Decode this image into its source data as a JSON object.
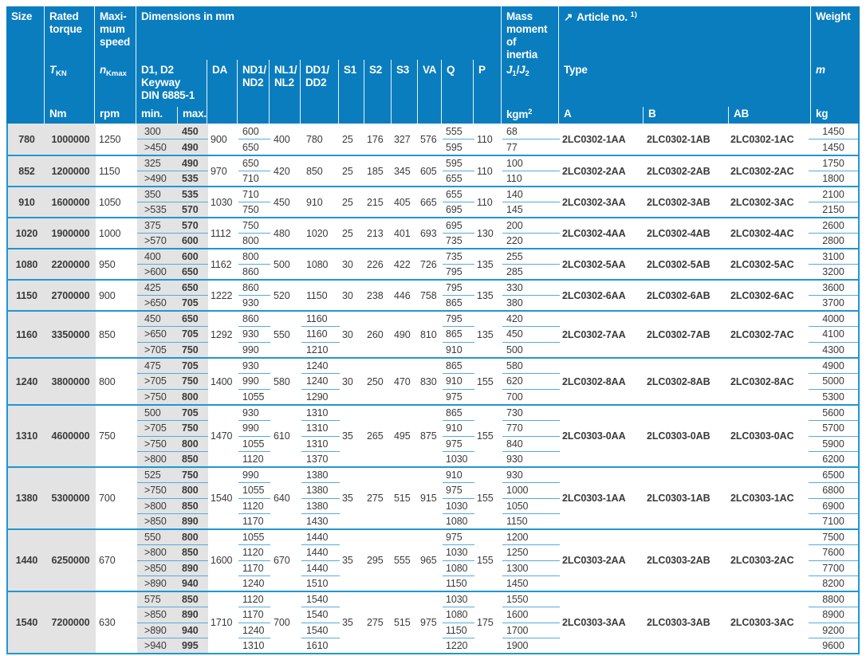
{
  "header": {
    "size": "Size",
    "rated_torque": "Rated\ntorque",
    "max_speed": "Maxi-\nmum\nspeed",
    "dimensions": "Dimensions in mm",
    "mass_moment": "Mass\nmoment\nof\ninertia",
    "article": {
      "arrow_icon": "↗",
      "label": "Article no.",
      "sup": "1)"
    },
    "weight": "Weight",
    "tkn": {
      "base": "T",
      "sub": "KN"
    },
    "nkmax": {
      "base": "n",
      "sub": "Kmax"
    },
    "d1d2": "D1, D2\nKeyway\nDIN 6885-1",
    "da": "DA",
    "nd": "ND1/\nND2",
    "nl": "NL1/\nNL2",
    "dd": "DD1/\nDD2",
    "s1": "S1",
    "s2": "S2",
    "s3": "S3",
    "va": "VA",
    "q": "Q",
    "p": "P",
    "j": {
      "b1": "J",
      "s1": "1",
      "sep": "/",
      "b2": "J",
      "s2": "2"
    },
    "type": "Type",
    "m": "m",
    "units": {
      "nm": "Nm",
      "rpm": "rpm",
      "min": "min.",
      "max": "max.",
      "kgm2_base": "kgm",
      "kgm2_sup": "2",
      "a": "A",
      "b": "B",
      "ab": "AB",
      "kg": "kg"
    }
  },
  "colors": {
    "header_bg": "#0a7dbe",
    "row_line": "#2196d3",
    "fraction_line": "#55abdd",
    "gray_bg": "#e3e3e3",
    "text": "#3a3a3a"
  },
  "rows": [
    {
      "size": "780",
      "torque": "1000000",
      "speed": "1250",
      "d_min": [
        "300",
        ">450"
      ],
      "d_max": [
        "450",
        "490"
      ],
      "da": "900",
      "nd": [
        "600",
        "650"
      ],
      "nl": "400",
      "dd": [
        "780"
      ],
      "s1": "25",
      "s2": "176",
      "s3": "327",
      "va": "576",
      "q": [
        "555",
        "595"
      ],
      "p": "110",
      "j": [
        "68",
        "77"
      ],
      "type_a": "2LC0302-1AA",
      "type_b": "2LC0302-1AB",
      "type_ab": "2LC0302-1AC",
      "weight": [
        "1450",
        "1450"
      ]
    },
    {
      "size": "852",
      "torque": "1200000",
      "speed": "1150",
      "d_min": [
        "325",
        ">490"
      ],
      "d_max": [
        "490",
        "535"
      ],
      "da": "970",
      "nd": [
        "650",
        "710"
      ],
      "nl": "420",
      "dd": [
        "850"
      ],
      "s1": "25",
      "s2": "185",
      "s3": "345",
      "va": "605",
      "q": [
        "595",
        "655"
      ],
      "p": "110",
      "j": [
        "100",
        "110"
      ],
      "type_a": "2LC0302-2AA",
      "type_b": "2LC0302-2AB",
      "type_ab": "2LC0302-2AC",
      "weight": [
        "1750",
        "1800"
      ]
    },
    {
      "size": "910",
      "torque": "1600000",
      "speed": "1050",
      "d_min": [
        "350",
        ">535"
      ],
      "d_max": [
        "535",
        "570"
      ],
      "da": "1030",
      "nd": [
        "710",
        "750"
      ],
      "nl": "450",
      "dd": [
        "910"
      ],
      "s1": "25",
      "s2": "215",
      "s3": "405",
      "va": "665",
      "q": [
        "655",
        "695"
      ],
      "p": "110",
      "j": [
        "140",
        "145"
      ],
      "type_a": "2LC0302-3AA",
      "type_b": "2LC0302-3AB",
      "type_ab": "2LC0302-3AC",
      "weight": [
        "2100",
        "2150"
      ]
    },
    {
      "size": "1020",
      "torque": "1900000",
      "speed": "1000",
      "d_min": [
        "375",
        ">570"
      ],
      "d_max": [
        "570",
        "600"
      ],
      "da": "1112",
      "nd": [
        "750",
        "800"
      ],
      "nl": "480",
      "dd": [
        "1020"
      ],
      "s1": "25",
      "s2": "213",
      "s3": "401",
      "va": "693",
      "q": [
        "695",
        "735"
      ],
      "p": "130",
      "j": [
        "200",
        "220"
      ],
      "type_a": "2LC0302-4AA",
      "type_b": "2LC0302-4AB",
      "type_ab": "2LC0302-4AC",
      "weight": [
        "2600",
        "2800"
      ]
    },
    {
      "size": "1080",
      "torque": "2200000",
      "speed": "950",
      "d_min": [
        "400",
        ">600"
      ],
      "d_max": [
        "600",
        "650"
      ],
      "da": "1162",
      "nd": [
        "800",
        "860"
      ],
      "nl": "500",
      "dd": [
        "1080"
      ],
      "s1": "30",
      "s2": "226",
      "s3": "422",
      "va": "726",
      "q": [
        "735",
        "795"
      ],
      "p": "135",
      "j": [
        "255",
        "285"
      ],
      "type_a": "2LC0302-5AA",
      "type_b": "2LC0302-5AB",
      "type_ab": "2LC0302-5AC",
      "weight": [
        "3100",
        "3200"
      ]
    },
    {
      "size": "1150",
      "torque": "2700000",
      "speed": "900",
      "d_min": [
        "425",
        ">650"
      ],
      "d_max": [
        "650",
        "705"
      ],
      "da": "1222",
      "nd": [
        "860",
        "930"
      ],
      "nl": "520",
      "dd": [
        "1150"
      ],
      "s1": "30",
      "s2": "238",
      "s3": "446",
      "va": "758",
      "q": [
        "795",
        "865"
      ],
      "p": "135",
      "j": [
        "330",
        "380"
      ],
      "type_a": "2LC0302-6AA",
      "type_b": "2LC0302-6AB",
      "type_ab": "2LC0302-6AC",
      "weight": [
        "3600",
        "3700"
      ]
    },
    {
      "size": "1160",
      "torque": "3350000",
      "speed": "850",
      "d_min": [
        "450",
        ">650",
        ">705"
      ],
      "d_max": [
        "650",
        "705",
        "750"
      ],
      "da": "1292",
      "nd": [
        "860",
        "930",
        "990"
      ],
      "nl": "550",
      "dd": [
        "1160",
        "1160",
        "1210"
      ],
      "s1": "30",
      "s2": "260",
      "s3": "490",
      "va": "810",
      "q": [
        "795",
        "865",
        "910"
      ],
      "p": "135",
      "j": [
        "420",
        "450",
        "500"
      ],
      "type_a": "2LC0302-7AA",
      "type_b": "2LC0302-7AB",
      "type_ab": "2LC0302-7AC",
      "weight": [
        "4000",
        "4100",
        "4300"
      ]
    },
    {
      "size": "1240",
      "torque": "3800000",
      "speed": "800",
      "d_min": [
        "475",
        ">705",
        ">750"
      ],
      "d_max": [
        "705",
        "750",
        "800"
      ],
      "da": "1400",
      "nd": [
        "930",
        "990",
        "1055"
      ],
      "nl": "580",
      "dd": [
        "1240",
        "1240",
        "1290"
      ],
      "s1": "30",
      "s2": "250",
      "s3": "470",
      "va": "830",
      "q": [
        "865",
        "910",
        "975"
      ],
      "p": "155",
      "j": [
        "580",
        "620",
        "700"
      ],
      "type_a": "2LC0302-8AA",
      "type_b": "2LC0302-8AB",
      "type_ab": "2LC0302-8AC",
      "weight": [
        "4900",
        "5000",
        "5300"
      ]
    },
    {
      "size": "1310",
      "torque": "4600000",
      "speed": "750",
      "d_min": [
        "500",
        ">705",
        ">750",
        ">800"
      ],
      "d_max": [
        "705",
        "750",
        "800",
        "850"
      ],
      "da": "1470",
      "nd": [
        "930",
        "990",
        "1055",
        "1120"
      ],
      "nl": "610",
      "dd": [
        "1310",
        "1310",
        "1310",
        "1370"
      ],
      "s1": "35",
      "s2": "265",
      "s3": "495",
      "va": "875",
      "q": [
        "865",
        "910",
        "975",
        "1030"
      ],
      "p": "155",
      "j": [
        "730",
        "770",
        "840",
        "930"
      ],
      "type_a": "2LC0303-0AA",
      "type_b": "2LC0303-0AB",
      "type_ab": "2LC0303-0AC",
      "weight": [
        "5600",
        "5700",
        "5900",
        "6200"
      ]
    },
    {
      "size": "1380",
      "torque": "5300000",
      "speed": "700",
      "d_min": [
        "525",
        ">750",
        ">800",
        ">850"
      ],
      "d_max": [
        "750",
        "800",
        "850",
        "890"
      ],
      "da": "1540",
      "nd": [
        "990",
        "1055",
        "1120",
        "1170"
      ],
      "nl": "640",
      "dd": [
        "1380",
        "1380",
        "1380",
        "1430"
      ],
      "s1": "35",
      "s2": "275",
      "s3": "515",
      "va": "915",
      "q": [
        "910",
        "975",
        "1030",
        "1080"
      ],
      "p": "155",
      "j": [
        "930",
        "1000",
        "1050",
        "1150"
      ],
      "type_a": "2LC0303-1AA",
      "type_b": "2LC0303-1AB",
      "type_ab": "2LC0303-1AC",
      "weight": [
        "6500",
        "6800",
        "6900",
        "7100"
      ]
    },
    {
      "size": "1440",
      "torque": "6250000",
      "speed": "670",
      "d_min": [
        "550",
        ">800",
        ">850",
        ">890"
      ],
      "d_max": [
        "800",
        "850",
        "890",
        "940"
      ],
      "da": "1600",
      "nd": [
        "1055",
        "1120",
        "1170",
        "1240"
      ],
      "nl": "670",
      "dd": [
        "1440",
        "1440",
        "1440",
        "1510"
      ],
      "s1": "35",
      "s2": "295",
      "s3": "555",
      "va": "965",
      "q": [
        "975",
        "1030",
        "1080",
        "1150"
      ],
      "p": "155",
      "j": [
        "1200",
        "1250",
        "1300",
        "1450"
      ],
      "type_a": "2LC0303-2AA",
      "type_b": "2LC0303-2AB",
      "type_ab": "2LC0303-2AC",
      "weight": [
        "7500",
        "7600",
        "7700",
        "8200"
      ]
    },
    {
      "size": "1540",
      "torque": "7200000",
      "speed": "630",
      "d_min": [
        "575",
        ">850",
        ">890",
        ">940"
      ],
      "d_max": [
        "850",
        "890",
        "940",
        "995"
      ],
      "da": "1710",
      "nd": [
        "1120",
        "1170",
        "1240",
        "1310"
      ],
      "nl": "700",
      "dd": [
        "1540",
        "1540",
        "1540",
        "1610"
      ],
      "s1": "35",
      "s2": "275",
      "s3": "515",
      "va": "975",
      "q": [
        "1030",
        "1080",
        "1150",
        "1220"
      ],
      "p": "175",
      "j": [
        "1550",
        "1600",
        "1700",
        "1900"
      ],
      "type_a": "2LC0303-3AA",
      "type_b": "2LC0303-3AB",
      "type_ab": "2LC0303-3AC",
      "weight": [
        "8800",
        "8900",
        "9200",
        "9600"
      ]
    }
  ]
}
